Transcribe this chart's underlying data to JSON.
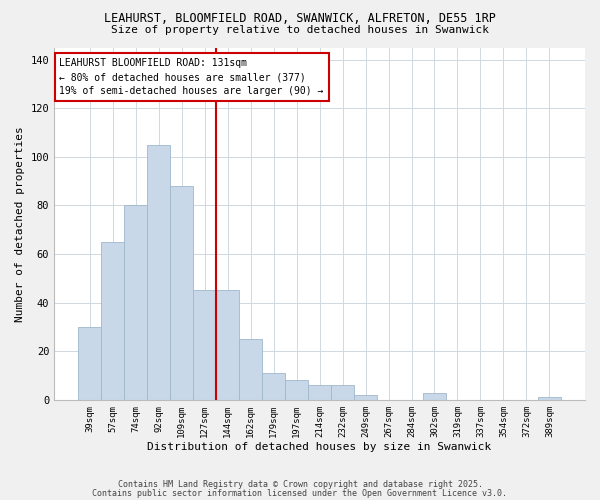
{
  "title1": "LEAHURST, BLOOMFIELD ROAD, SWANWICK, ALFRETON, DE55 1RP",
  "title2": "Size of property relative to detached houses in Swanwick",
  "xlabel": "Distribution of detached houses by size in Swanwick",
  "ylabel": "Number of detached properties",
  "bar_labels": [
    "39sqm",
    "57sqm",
    "74sqm",
    "92sqm",
    "109sqm",
    "127sqm",
    "144sqm",
    "162sqm",
    "179sqm",
    "197sqm",
    "214sqm",
    "232sqm",
    "249sqm",
    "267sqm",
    "284sqm",
    "302sqm",
    "319sqm",
    "337sqm",
    "354sqm",
    "372sqm",
    "389sqm"
  ],
  "bar_values": [
    30,
    65,
    80,
    105,
    88,
    45,
    45,
    25,
    11,
    8,
    6,
    6,
    2,
    0,
    0,
    3,
    0,
    0,
    0,
    0,
    1
  ],
  "bar_color": "#c8d8e8",
  "bar_edgecolor": "#a0b8cc",
  "vline_x": 5.5,
  "vline_color": "#cc0000",
  "annotation_title": "LEAHURST BLOOMFIELD ROAD: 131sqm",
  "annotation_line1": "← 80% of detached houses are smaller (377)",
  "annotation_line2": "19% of semi-detached houses are larger (90) →",
  "annotation_box_color": "#cc0000",
  "ylim": [
    0,
    145
  ],
  "yticks": [
    0,
    20,
    40,
    60,
    80,
    100,
    120,
    140
  ],
  "footer1": "Contains HM Land Registry data © Crown copyright and database right 2025.",
  "footer2": "Contains public sector information licensed under the Open Government Licence v3.0.",
  "background_color": "#f0f0f0",
  "plot_background": "#ffffff"
}
